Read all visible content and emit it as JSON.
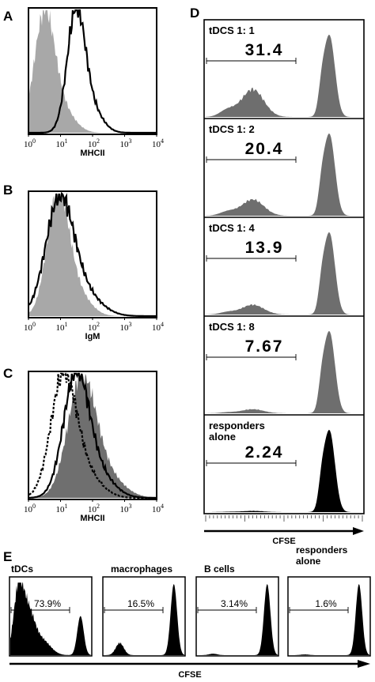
{
  "chart_data": [
    {
      "id": "A",
      "type": "histogram-overlay",
      "panel_label": "A",
      "xlabel": "MHCII",
      "xscale": "log",
      "xlim": [
        1,
        10000
      ],
      "tick_exponents": [
        "0",
        "1",
        "2",
        "3",
        "4"
      ],
      "tick_base": "10",
      "series": [
        {
          "style": "filled-gray",
          "peak_x": 3,
          "rel_height": 0.97,
          "width": 0.16
        },
        {
          "style": "line-black",
          "peak_x": 30,
          "rel_height": 1.0,
          "width": 0.14
        }
      ]
    },
    {
      "id": "B",
      "type": "histogram-overlay",
      "panel_label": "B",
      "xlabel": "IgM",
      "xscale": "log",
      "xlim": [
        1,
        10000
      ],
      "tick_exponents": [
        "0",
        "1",
        "2",
        "3",
        "4"
      ],
      "tick_base": "10",
      "series": [
        {
          "style": "filled-gray",
          "peak_x": 8,
          "rel_height": 1.0,
          "width": 0.17
        },
        {
          "style": "line-black",
          "peak_x": 9,
          "rel_height": 0.95,
          "width": 0.22
        }
      ]
    },
    {
      "id": "C",
      "type": "histogram-overlay",
      "panel_label": "C",
      "xlabel": "MHCII",
      "xscale": "log",
      "xlim": [
        1,
        10000
      ],
      "tick_exponents": [
        "0",
        "1",
        "2",
        "3",
        "4"
      ],
      "tick_base": "10",
      "series": [
        {
          "style": "filled-darkgray",
          "peak_x": 45,
          "rel_height": 0.96,
          "width": 0.22
        },
        {
          "style": "line-black",
          "peak_x": 30,
          "rel_height": 1.0,
          "width": 0.2
        },
        {
          "style": "line-dashed",
          "peak_x": 12,
          "rel_height": 0.98,
          "width": 0.2
        }
      ]
    },
    {
      "id": "D",
      "type": "histogram-stack",
      "panel_label": "D",
      "xlabel": "CFSE",
      "subpanels": [
        {
          "label": "tDCS 1: 1",
          "value": "31.4",
          "left_peak": 0.34,
          "right_peak": 1.0,
          "fill": "#6e6e6e"
        },
        {
          "label": "tDCS 1: 2",
          "value": "20.4",
          "left_peak": 0.2,
          "right_peak": 1.0,
          "fill": "#6e6e6e"
        },
        {
          "label": "tDCS 1: 4",
          "value": "13.9",
          "left_peak": 0.12,
          "right_peak": 1.0,
          "fill": "#6e6e6e"
        },
        {
          "label": "tDCS 1: 8",
          "value": "7.67",
          "left_peak": 0.05,
          "right_peak": 1.0,
          "fill": "#6e6e6e"
        },
        {
          "label": "responders\nalone",
          "value": "2.24",
          "left_peak": 0.015,
          "right_peak": 1.0,
          "fill": "#000000"
        }
      ]
    },
    {
      "id": "E",
      "type": "histogram-row",
      "panel_label": "E",
      "xlabel": "CFSE",
      "subpanels": [
        {
          "label": "tDCs",
          "value": "73.9%",
          "left_peak": 1.0,
          "right_peak": 0.55
        },
        {
          "label": "macrophages",
          "value": "16.5%",
          "left_peak": 0.17,
          "right_peak": 1.0
        },
        {
          "label": "B cells",
          "value": "3.14%",
          "left_peak": 0.02,
          "right_peak": 1.0
        },
        {
          "label": "responders\nalone",
          "value": "1.6%",
          "left_peak": 0.01,
          "right_peak": 1.0
        }
      ]
    }
  ]
}
